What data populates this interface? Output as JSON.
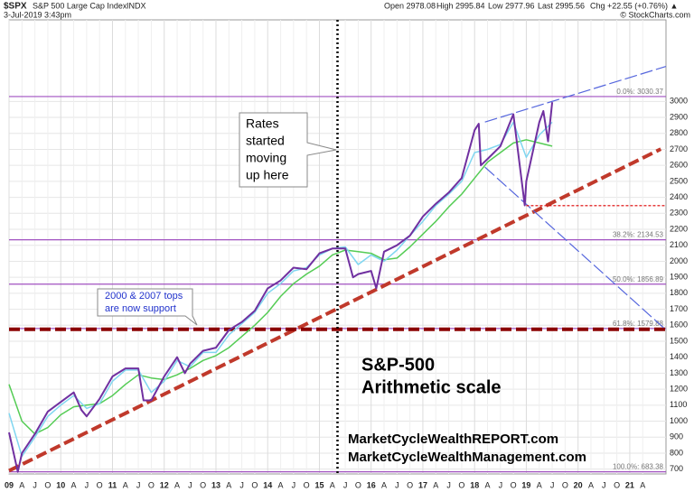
{
  "header": {
    "symbol": "$SPX",
    "name": "S&P 500 Large Cap Index",
    "exchange": "INDX",
    "datetime": "3-Jul-2019 3:43pm",
    "quote": [
      "Open 2978.08",
      "High 2995.84",
      "Low 2977.96",
      "Last 2995.56",
      "Chg +22.55 (+0.76%) ▲"
    ],
    "credit": "© StockCharts.com"
  },
  "chart_data": {
    "type": "line",
    "annotations": {
      "callout": [
        "Rates",
        "started",
        "moving",
        "up here"
      ],
      "support_note": [
        "2000 & 2007 tops",
        "are now support"
      ],
      "big_title": "S&P-500",
      "big_subtitle": "Arithmetic scale",
      "url1": "MarketCycleWealthREPORT.com",
      "url2": "MarketCycleWealthManagement.com"
    },
    "series": [
      {
        "color": "#7030a0",
        "width": 2,
        "x": [
          2009.0,
          2009.17,
          2009.25,
          2009.5,
          2009.75,
          2010.0,
          2010.25,
          2010.4,
          2010.5,
          2010.75,
          2011.0,
          2011.25,
          2011.5,
          2011.6,
          2011.75,
          2012.0,
          2012.25,
          2012.4,
          2012.5,
          2012.75,
          2013.0,
          2013.25,
          2013.5,
          2013.75,
          2014.0,
          2014.25,
          2014.5,
          2014.75,
          2015.0,
          2015.25,
          2015.5,
          2015.65,
          2015.75,
          2016.0,
          2016.1,
          2016.25,
          2016.5,
          2016.75,
          2017.0,
          2017.25,
          2017.5,
          2017.75,
          2018.0,
          2018.08,
          2018.12,
          2018.25,
          2018.5,
          2018.75,
          2018.97,
          2019.0,
          2019.25,
          2019.33,
          2019.42,
          2019.5
        ],
        "values": [
          930,
          683,
          800,
          920,
          1060,
          1120,
          1180,
          1070,
          1030,
          1140,
          1280,
          1330,
          1330,
          1130,
          1130,
          1280,
          1400,
          1300,
          1360,
          1440,
          1460,
          1570,
          1620,
          1690,
          1830,
          1880,
          1960,
          1950,
          2050,
          2080,
          2080,
          1900,
          1920,
          1940,
          1830,
          2060,
          2100,
          2160,
          2280,
          2360,
          2430,
          2520,
          2820,
          2860,
          2600,
          2640,
          2720,
          2920,
          2350,
          2500,
          2870,
          2940,
          2750,
          2995
        ]
      },
      {
        "color": "#7fd6f0",
        "width": 1.5,
        "x": [
          2009.0,
          2009.25,
          2009.5,
          2009.75,
          2010.0,
          2010.25,
          2010.5,
          2010.75,
          2011.0,
          2011.25,
          2011.5,
          2011.75,
          2012.0,
          2012.25,
          2012.5,
          2012.75,
          2013.0,
          2013.25,
          2013.5,
          2013.75,
          2014.0,
          2014.25,
          2014.5,
          2014.75,
          2015.0,
          2015.25,
          2015.5,
          2015.75,
          2016.0,
          2016.25,
          2016.5,
          2016.75,
          2017.0,
          2017.25,
          2017.5,
          2017.75,
          2018.0,
          2018.25,
          2018.5,
          2018.75,
          2019.0,
          2019.25,
          2019.5
        ],
        "values": [
          1050,
          780,
          900,
          1030,
          1100,
          1160,
          1080,
          1110,
          1250,
          1320,
          1320,
          1180,
          1250,
          1380,
          1340,
          1430,
          1430,
          1540,
          1610,
          1680,
          1800,
          1860,
          1940,
          1960,
          2040,
          2080,
          2090,
          1980,
          2040,
          2000,
          2070,
          2160,
          2250,
          2350,
          2420,
          2500,
          2680,
          2700,
          2730,
          2870,
          2650,
          2790,
          2870
        ]
      },
      {
        "color": "#55cc55",
        "width": 1.5,
        "x": [
          2009.0,
          2009.25,
          2009.5,
          2009.75,
          2010.0,
          2010.25,
          2010.5,
          2010.75,
          2011.0,
          2011.25,
          2011.5,
          2011.75,
          2012.0,
          2012.25,
          2012.5,
          2012.75,
          2013.0,
          2013.25,
          2013.5,
          2013.75,
          2014.0,
          2014.25,
          2014.5,
          2014.75,
          2015.0,
          2015.25,
          2015.5,
          2015.75,
          2016.0,
          2016.25,
          2016.5,
          2016.75,
          2017.0,
          2017.25,
          2017.5,
          2017.75,
          2018.0,
          2018.25,
          2018.5,
          2018.75,
          2019.0,
          2019.25,
          2019.5
        ],
        "values": [
          1230,
          1000,
          920,
          960,
          1040,
          1090,
          1100,
          1110,
          1160,
          1230,
          1290,
          1270,
          1260,
          1290,
          1330,
          1380,
          1410,
          1460,
          1530,
          1600,
          1680,
          1780,
          1860,
          1920,
          1970,
          2040,
          2070,
          2060,
          2050,
          2010,
          2020,
          2090,
          2170,
          2250,
          2340,
          2420,
          2520,
          2620,
          2680,
          2740,
          2760,
          2740,
          2720
        ]
      }
    ],
    "fib_levels": [
      {
        "value": 3030.37,
        "label": "0.0%: 3030.37"
      },
      {
        "value": 2134.53,
        "label": "38.2%: 2134.53"
      },
      {
        "value": 1856.89,
        "label": "50.0%: 1856.89"
      },
      {
        "value": 1579.88,
        "label": "61.8%: 1579.88"
      },
      {
        "value": 683.38,
        "label": "100.0%: 683.38"
      }
    ],
    "fib_color": "#a050c0",
    "trendlines": [
      {
        "x": [
          2009.0,
          2021.6
        ],
        "values": [
          690,
          2702
        ],
        "color": "#c0392b",
        "style": "thick-dash"
      },
      {
        "x": [
          2009.0,
          2021.7
        ],
        "values": [
          1575,
          1575
        ],
        "color": "#8b0000",
        "style": "thick-dash"
      },
      {
        "x": [
          2018.2,
          2021.7
        ],
        "values": [
          2871,
          3219
        ],
        "color": "#5566dd",
        "style": "dash"
      },
      {
        "x": [
          2018.2,
          2021.7
        ],
        "values": [
          2589,
          1571
        ],
        "color": "#5566dd",
        "style": "dash"
      },
      {
        "x": [
          2019.0,
          2021.7
        ],
        "values": [
          2348,
          2348
        ],
        "color": "#dd0000",
        "style": "dot"
      }
    ],
    "vline": 2015.35,
    "xlim": [
      2009.0,
      2021.7
    ],
    "xticks": [
      {
        "value": 2009,
        "label": "09"
      },
      {
        "value": 2009.25,
        "label": "A"
      },
      {
        "value": 2009.5,
        "label": "J"
      },
      {
        "value": 2009.75,
        "label": "O"
      },
      {
        "value": 2010,
        "label": "10"
      },
      {
        "value": 2010.25,
        "label": "A"
      },
      {
        "value": 2010.5,
        "label": "J"
      },
      {
        "value": 2010.75,
        "label": "O"
      },
      {
        "value": 2011,
        "label": "11"
      },
      {
        "value": 2011.25,
        "label": "A"
      },
      {
        "value": 2011.5,
        "label": "J"
      },
      {
        "value": 2011.75,
        "label": "O"
      },
      {
        "value": 2012,
        "label": "12"
      },
      {
        "value": 2012.25,
        "label": "A"
      },
      {
        "value": 2012.5,
        "label": "J"
      },
      {
        "value": 2012.75,
        "label": "O"
      },
      {
        "value": 2013,
        "label": "13"
      },
      {
        "value": 2013.25,
        "label": "A"
      },
      {
        "value": 2013.5,
        "label": "J"
      },
      {
        "value": 2013.75,
        "label": "O"
      },
      {
        "value": 2014,
        "label": "14"
      },
      {
        "value": 2014.25,
        "label": "A"
      },
      {
        "value": 2014.5,
        "label": "J"
      },
      {
        "value": 2014.75,
        "label": "O"
      },
      {
        "value": 2015,
        "label": "15"
      },
      {
        "value": 2015.25,
        "label": "A"
      },
      {
        "value": 2015.5,
        "label": "J"
      },
      {
        "value": 2015.75,
        "label": "O"
      },
      {
        "value": 2016,
        "label": "16"
      },
      {
        "value": 2016.25,
        "label": "A"
      },
      {
        "value": 2016.5,
        "label": "J"
      },
      {
        "value": 2016.75,
        "label": "O"
      },
      {
        "value": 2017,
        "label": "17"
      },
      {
        "value": 2017.25,
        "label": "A"
      },
      {
        "value": 2017.5,
        "label": "J"
      },
      {
        "value": 2017.75,
        "label": "O"
      },
      {
        "value": 2018,
        "label": "18"
      },
      {
        "value": 2018.25,
        "label": "A"
      },
      {
        "value": 2018.5,
        "label": "J"
      },
      {
        "value": 2018.75,
        "label": "O"
      },
      {
        "value": 2019,
        "label": "19"
      },
      {
        "value": 2019.25,
        "label": "A"
      },
      {
        "value": 2019.5,
        "label": "J"
      },
      {
        "value": 2019.75,
        "label": "O"
      },
      {
        "value": 2020,
        "label": "20"
      },
      {
        "value": 2020.25,
        "label": "A"
      },
      {
        "value": 2020.5,
        "label": "J"
      },
      {
        "value": 2020.75,
        "label": "O"
      },
      {
        "value": 2021,
        "label": "21"
      },
      {
        "value": 2021.25,
        "label": "A"
      }
    ],
    "ylim": [
      670,
      3510
    ],
    "yticks": [
      700,
      800,
      900,
      1000,
      1100,
      1200,
      1300,
      1400,
      1500,
      1600,
      1700,
      1800,
      1900,
      2000,
      2100,
      2200,
      2300,
      2400,
      2500,
      2600,
      2700,
      2800,
      2900,
      3000
    ],
    "grid": true
  }
}
